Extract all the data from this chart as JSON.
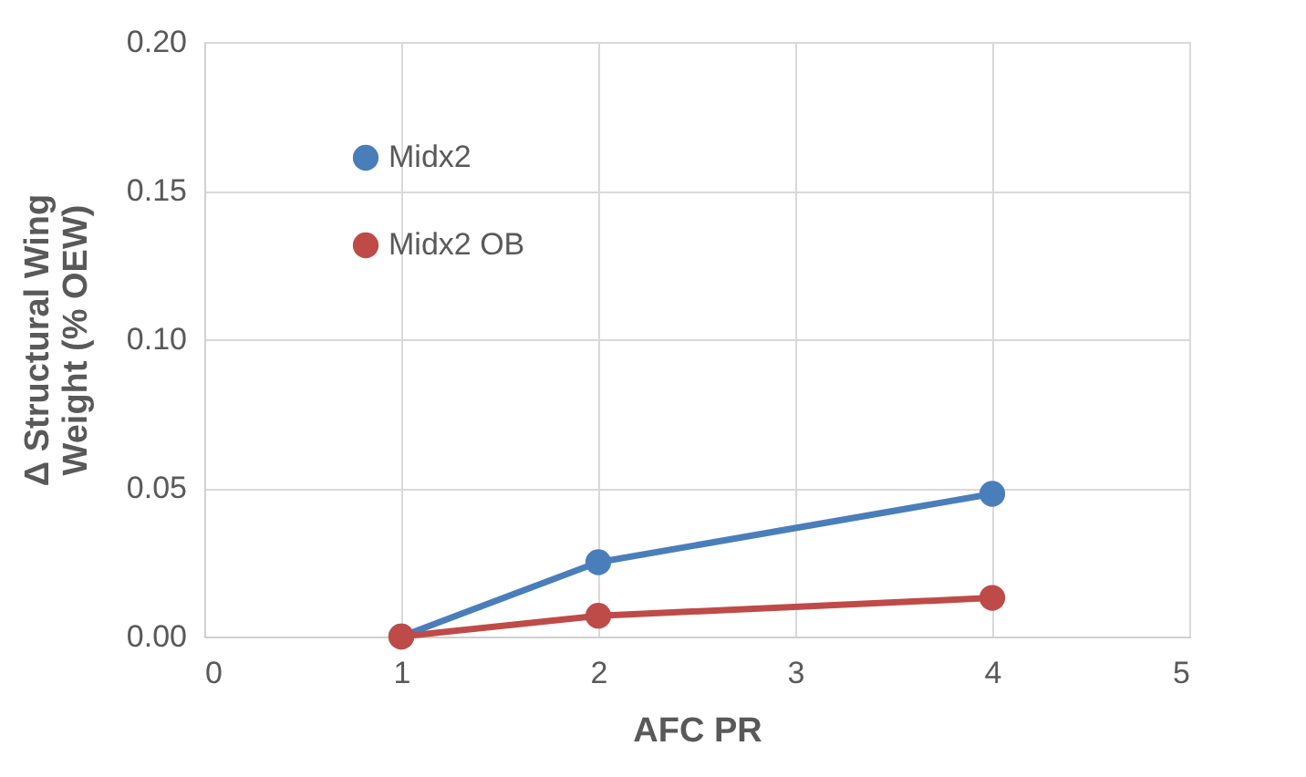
{
  "chart_data": {
    "type": "line",
    "xlabel": "AFC PR",
    "ylabel": "Δ Structural Wing\nWeight (% OEW)",
    "x": [
      1,
      2,
      4
    ],
    "series": [
      {
        "name": "Midx2",
        "color": "#4a7ebb",
        "values": [
          0,
          0.025,
          0.048
        ]
      },
      {
        "name": "Midx2 OB",
        "color": "#be4b48",
        "values": [
          0,
          0.007,
          0.013
        ]
      }
    ],
    "xlim": [
      0,
      5
    ],
    "xticks": [
      0,
      1,
      2,
      3,
      4,
      5
    ],
    "ylim": [
      0,
      0.2
    ],
    "yticks": [
      {
        "value": 0,
        "label": "0.00"
      },
      {
        "value": 0.05,
        "label": "0.05"
      },
      {
        "value": 0.1,
        "label": "0.10"
      },
      {
        "value": 0.15,
        "label": "0.15"
      },
      {
        "value": 0.2,
        "label": "0.20"
      }
    ],
    "grid": true,
    "legend": "top left",
    "marker": "circle",
    "line_style": "solid"
  }
}
